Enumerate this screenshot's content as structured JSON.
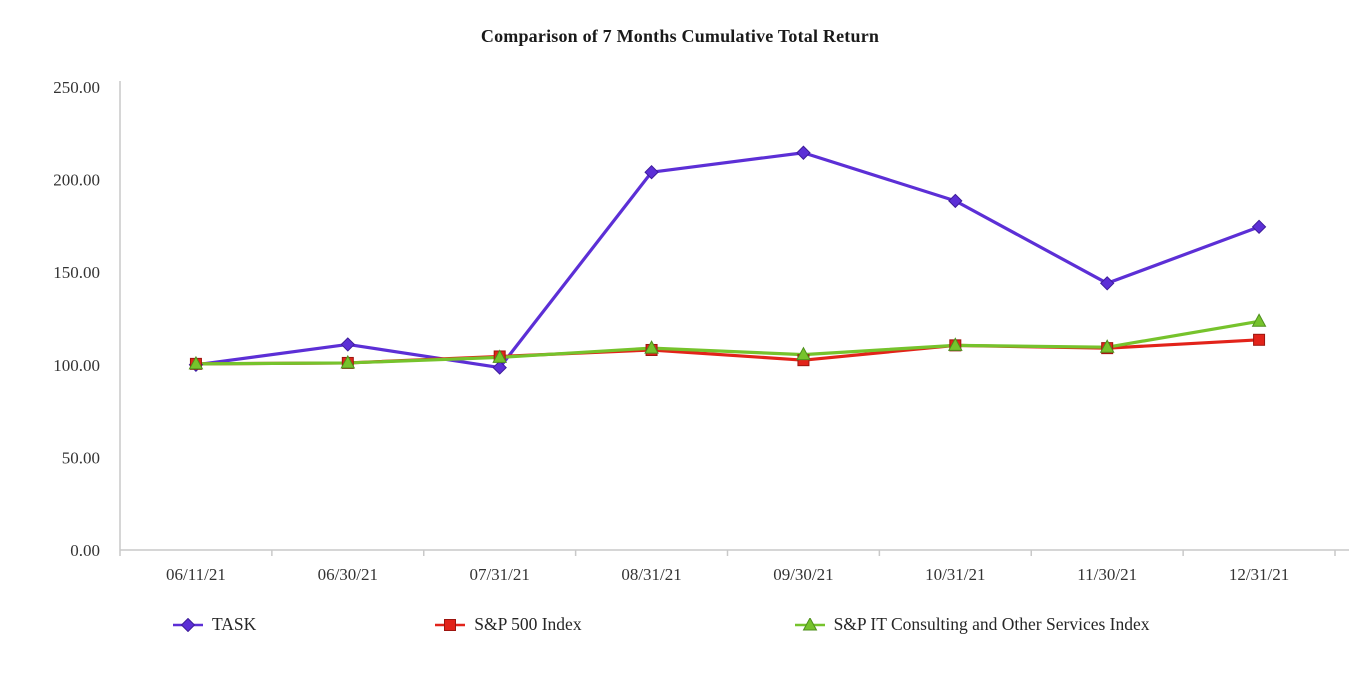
{
  "title": "Comparison of 7 Months Cumulative Total Return",
  "chart_data": {
    "type": "line",
    "title": "Comparison of 7 Months Cumulative Total Return",
    "xlabel": "",
    "ylabel": "",
    "categories": [
      "06/11/21",
      "06/30/21",
      "07/31/21",
      "08/31/21",
      "09/30/21",
      "10/31/21",
      "11/30/21",
      "12/31/21"
    ],
    "series": [
      {
        "name": "TASK",
        "marker": "diamond",
        "color": "#5c2fd6",
        "edge_color": "#3d1c99",
        "values": [
          100,
          111,
          98.5,
          204,
          214.5,
          188.5,
          144,
          174.5
        ]
      },
      {
        "name": "S&P 500 Index",
        "marker": "square",
        "color": "#e2231a",
        "edge_color": "#9c150f",
        "values": [
          100.5,
          101,
          104.5,
          108,
          102.5,
          110.5,
          109,
          113.5
        ]
      },
      {
        "name": "S&P IT Consulting and Other Services Index",
        "marker": "triangle",
        "color": "#76c32c",
        "edge_color": "#4e8f1d",
        "values": [
          100.5,
          101,
          104,
          109,
          105.5,
          110.5,
          109.5,
          123.5
        ]
      }
    ],
    "ylim": [
      0,
      250
    ],
    "ytick_step": 50,
    "ytick_labels": [
      "0.00",
      "50.00",
      "100.00",
      "150.00",
      "200.00",
      "250.00"
    ],
    "grid": false,
    "legend_position": "bottom",
    "axis_color": "#c9c9c9"
  }
}
